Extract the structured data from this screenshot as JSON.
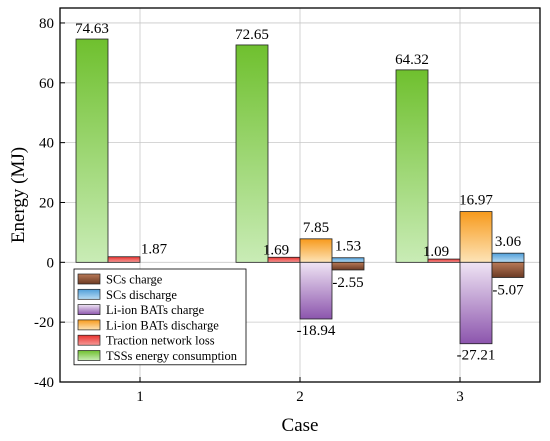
{
  "chart_data": {
    "type": "bar",
    "xlabel": "Case",
    "ylabel": "Energy (MJ)",
    "categories": [
      "1",
      "2",
      "3"
    ],
    "ylim": [
      -40,
      85
    ],
    "yticks": [
      -40,
      -20,
      0,
      20,
      40,
      60,
      80
    ],
    "grid": true,
    "legend_position": "bottom-left",
    "series": [
      {
        "name": "SCs charge",
        "values": [
          null,
          -2.55,
          -5.07
        ],
        "labels": [
          "",
          "-2.55",
          "-5.07"
        ],
        "color_top": "#b97a58",
        "color_bottom": "#6b3a24"
      },
      {
        "name": "SCs discharge",
        "values": [
          null,
          1.53,
          3.06
        ],
        "labels": [
          "",
          "1.53",
          "3.06"
        ],
        "color_top": "#4f9ed9",
        "color_bottom": "#b9dcf3"
      },
      {
        "name": "Li-ion BATs charge",
        "values": [
          null,
          -18.94,
          -27.21
        ],
        "labels": [
          "",
          "-18.94",
          "-27.21"
        ],
        "color_top": "#efe4f4",
        "color_bottom": "#8c55ad"
      },
      {
        "name": "Li-ion BATs discharge",
        "values": [
          null,
          7.85,
          16.97
        ],
        "labels": [
          "",
          "7.85",
          "16.97"
        ],
        "color_top": "#f79a1c",
        "color_bottom": "#fde4b8"
      },
      {
        "name": "Traction network loss",
        "values": [
          1.87,
          1.69,
          1.09
        ],
        "labels": [
          "1.87",
          "1.69",
          "1.09"
        ],
        "color_top": "#e8322e",
        "color_bottom": "#f79a98"
      },
      {
        "name": "TSSs energy consumption",
        "values": [
          74.63,
          72.65,
          64.32
        ],
        "labels": [
          "74.63",
          "72.65",
          "64.32"
        ],
        "color_top": "#6fc02e",
        "color_bottom": "#c9ecb6"
      }
    ],
    "bar_order": [
      "TSSs energy consumption",
      "Traction network loss",
      "Li-ion BATs discharge",
      "Li-ion BATs charge",
      "SCs discharge",
      "SCs charge"
    ]
  }
}
